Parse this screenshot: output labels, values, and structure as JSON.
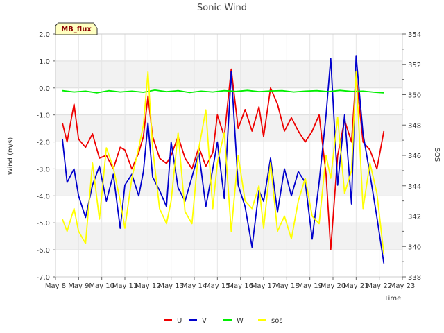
{
  "chart_data": {
    "type": "line",
    "title": "Sonic Wind",
    "xlabel": "Time",
    "ylabel": "Wind (m/s)",
    "y2label": "SOS",
    "badge": "MB_flux",
    "xlim": [
      8,
      23
    ],
    "ylim": [
      -7,
      2
    ],
    "y2lim": [
      338,
      354
    ],
    "x_ticks": [
      8,
      9,
      10,
      11,
      12,
      13,
      14,
      15,
      16,
      17,
      18,
      19,
      20,
      21,
      22,
      23
    ],
    "x_tick_labels": [
      "May 8",
      "May 9",
      "May 10",
      "May 11",
      "May 12",
      "May 13",
      "May 14",
      "May 15",
      "May 16",
      "May 17",
      "May 18",
      "May 19",
      "May 20",
      "May 21",
      "May 22",
      "May 23"
    ],
    "y_ticks": [
      2,
      1,
      0,
      -1,
      -2,
      -3,
      -4,
      -5,
      -6,
      -7
    ],
    "y_tick_labels": [
      "2.0",
      "1.0",
      "0.0",
      "-1.0",
      "-2.0",
      "-3.0",
      "-4.0",
      "-5.0",
      "-6.0",
      "-7.0"
    ],
    "y2_ticks": [
      354,
      352,
      350,
      348,
      346,
      344,
      342,
      340,
      338
    ],
    "y2_tick_labels": [
      "354",
      "352",
      "350",
      "348",
      "346",
      "344",
      "342",
      "340",
      "338"
    ],
    "series": [
      {
        "name": "U",
        "color": "#ee0000",
        "axis": "left",
        "x": [
          8.3,
          8.5,
          8.8,
          9.0,
          9.3,
          9.6,
          9.9,
          10.2,
          10.5,
          10.8,
          11.0,
          11.3,
          11.6,
          11.8,
          12.0,
          12.2,
          12.5,
          12.8,
          13.0,
          13.3,
          13.6,
          13.9,
          14.2,
          14.5,
          14.8,
          15.0,
          15.3,
          15.6,
          15.9,
          16.2,
          16.5,
          16.8,
          17.0,
          17.3,
          17.6,
          17.9,
          18.2,
          18.5,
          18.8,
          19.1,
          19.4,
          19.7,
          19.9,
          20.2,
          20.5,
          20.8,
          21.0,
          21.3,
          21.6,
          21.9,
          22.2
        ],
        "y": [
          -1.3,
          -2.0,
          -0.6,
          -1.9,
          -2.2,
          -1.7,
          -2.6,
          -2.5,
          -3.0,
          -2.2,
          -2.3,
          -3.0,
          -2.4,
          -1.8,
          -0.3,
          -1.8,
          -2.6,
          -2.8,
          -2.5,
          -1.8,
          -2.6,
          -3.0,
          -2.2,
          -2.9,
          -2.4,
          -1.0,
          -1.8,
          0.7,
          -1.5,
          -0.8,
          -1.6,
          -0.7,
          -1.8,
          0.0,
          -0.6,
          -1.6,
          -1.1,
          -1.6,
          -2.0,
          -1.6,
          -1.0,
          -3.2,
          -6.0,
          -2.5,
          -1.2,
          -2.0,
          0.5,
          -2.0,
          -2.3,
          -3.0,
          -1.6
        ]
      },
      {
        "name": "V",
        "color": "#0000cc",
        "axis": "left",
        "x": [
          8.3,
          8.5,
          8.8,
          9.0,
          9.3,
          9.6,
          9.9,
          10.2,
          10.5,
          10.8,
          11.0,
          11.3,
          11.6,
          11.8,
          12.0,
          12.2,
          12.5,
          12.8,
          13.0,
          13.3,
          13.6,
          13.9,
          14.2,
          14.5,
          14.8,
          15.0,
          15.3,
          15.6,
          15.9,
          16.2,
          16.5,
          16.8,
          17.0,
          17.3,
          17.6,
          17.9,
          18.2,
          18.5,
          18.8,
          19.1,
          19.4,
          19.7,
          19.9,
          20.2,
          20.5,
          20.8,
          21.0,
          21.3,
          21.6,
          21.9,
          22.2
        ],
        "y": [
          -1.9,
          -3.5,
          -3.0,
          -4.0,
          -4.8,
          -3.6,
          -2.9,
          -4.2,
          -3.2,
          -5.2,
          -3.6,
          -3.2,
          -4.0,
          -3.1,
          -1.3,
          -3.3,
          -3.8,
          -4.4,
          -2.0,
          -3.7,
          -4.2,
          -3.3,
          -2.4,
          -4.4,
          -3.0,
          -2.0,
          -4.1,
          0.6,
          -3.6,
          -4.4,
          -5.9,
          -3.8,
          -4.2,
          -2.6,
          -4.6,
          -3.0,
          -4.0,
          -3.1,
          -3.5,
          -5.6,
          -3.5,
          -1.0,
          1.1,
          -3.6,
          -1.0,
          -4.3,
          1.2,
          -1.7,
          -3.2,
          -4.8,
          -6.5
        ]
      },
      {
        "name": "W",
        "color": "#00ee00",
        "axis": "left",
        "x": [
          8.3,
          8.8,
          9.3,
          9.8,
          10.3,
          10.8,
          11.3,
          11.8,
          12.3,
          12.8,
          13.3,
          13.8,
          14.3,
          14.8,
          15.3,
          15.8,
          16.3,
          16.8,
          17.3,
          17.8,
          18.3,
          18.8,
          19.3,
          19.8,
          20.3,
          20.8,
          21.3,
          21.8,
          22.2
        ],
        "y": [
          -0.1,
          -0.15,
          -0.12,
          -0.18,
          -0.1,
          -0.15,
          -0.12,
          -0.16,
          -0.08,
          -0.14,
          -0.1,
          -0.17,
          -0.12,
          -0.15,
          -0.1,
          -0.13,
          -0.09,
          -0.14,
          -0.11,
          -0.1,
          -0.15,
          -0.12,
          -0.1,
          -0.14,
          -0.09,
          -0.13,
          -0.12,
          -0.16,
          -0.18
        ]
      },
      {
        "name": "sos",
        "color": "#ffff00",
        "axis": "right",
        "x": [
          8.3,
          8.5,
          8.8,
          9.0,
          9.3,
          9.6,
          9.9,
          10.2,
          10.5,
          10.8,
          11.0,
          11.3,
          11.6,
          11.8,
          12.0,
          12.2,
          12.5,
          12.8,
          13.0,
          13.3,
          13.6,
          13.9,
          14.2,
          14.5,
          14.8,
          15.0,
          15.3,
          15.6,
          15.9,
          16.2,
          16.5,
          16.8,
          17.0,
          17.3,
          17.6,
          17.9,
          18.2,
          18.5,
          18.8,
          19.1,
          19.4,
          19.7,
          19.9,
          20.2,
          20.5,
          20.8,
          21.0,
          21.3,
          21.6,
          21.9,
          22.2
        ],
        "y": [
          341.8,
          341.0,
          342.5,
          341.0,
          340.2,
          345.5,
          341.8,
          346.5,
          345.2,
          343.0,
          341.2,
          344.5,
          346.5,
          348.0,
          351.5,
          346.5,
          342.5,
          341.5,
          343.0,
          347.5,
          342.3,
          341.5,
          346.5,
          349.0,
          342.5,
          345.5,
          347.5,
          341.0,
          346.0,
          343.0,
          342.5,
          344.0,
          341.2,
          345.5,
          341.0,
          342.0,
          340.5,
          343.0,
          344.5,
          342.0,
          341.5,
          346.0,
          344.5,
          348.5,
          343.5,
          345.0,
          351.5,
          342.5,
          345.5,
          343.5,
          339.5
        ]
      }
    ]
  }
}
